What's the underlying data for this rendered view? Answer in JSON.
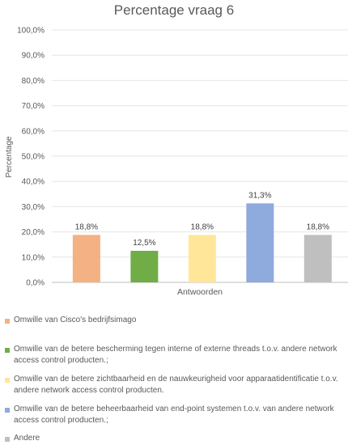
{
  "chart_data": {
    "type": "bar",
    "title": "Percentage vraag 6",
    "xlabel": "Antwoorden",
    "ylabel": "Percentage",
    "ylim": [
      0,
      100
    ],
    "yticks": [
      "0,0%",
      "10,0%",
      "20,0%",
      "30,0%",
      "40,0%",
      "50,0%",
      "60,0%",
      "70,0%",
      "80,0%",
      "90,0%",
      "100,0%"
    ],
    "grid": true,
    "legend_position": "bottom",
    "series": [
      {
        "name": "Omwille van Cisco's bedrijfsimago",
        "value": 18.8,
        "label": "18,8%",
        "color": "#F4B183"
      },
      {
        "name": "Omwille van de betere bescherming tegen interne of externe threads t.o.v. andere network access control producten.;",
        "value": 12.5,
        "label": "12,5%",
        "color": "#70AD47"
      },
      {
        "name": "Omwille van de betere zichtbaarheid en de nauwkeurigheid voor apparaatidentificatie t.o.v. andere network access control producten.",
        "value": 18.8,
        "label": "18,8%",
        "color": "#FFE699"
      },
      {
        "name": "Omwille van de betere beheerbaarheid van end-point systemen t.o.v. van andere network access control producten.;",
        "value": 31.3,
        "label": "31,3%",
        "color": "#8FAADC"
      },
      {
        "name": "Andere",
        "value": 18.8,
        "label": "18,8%",
        "color": "#BFBFBF"
      }
    ]
  }
}
